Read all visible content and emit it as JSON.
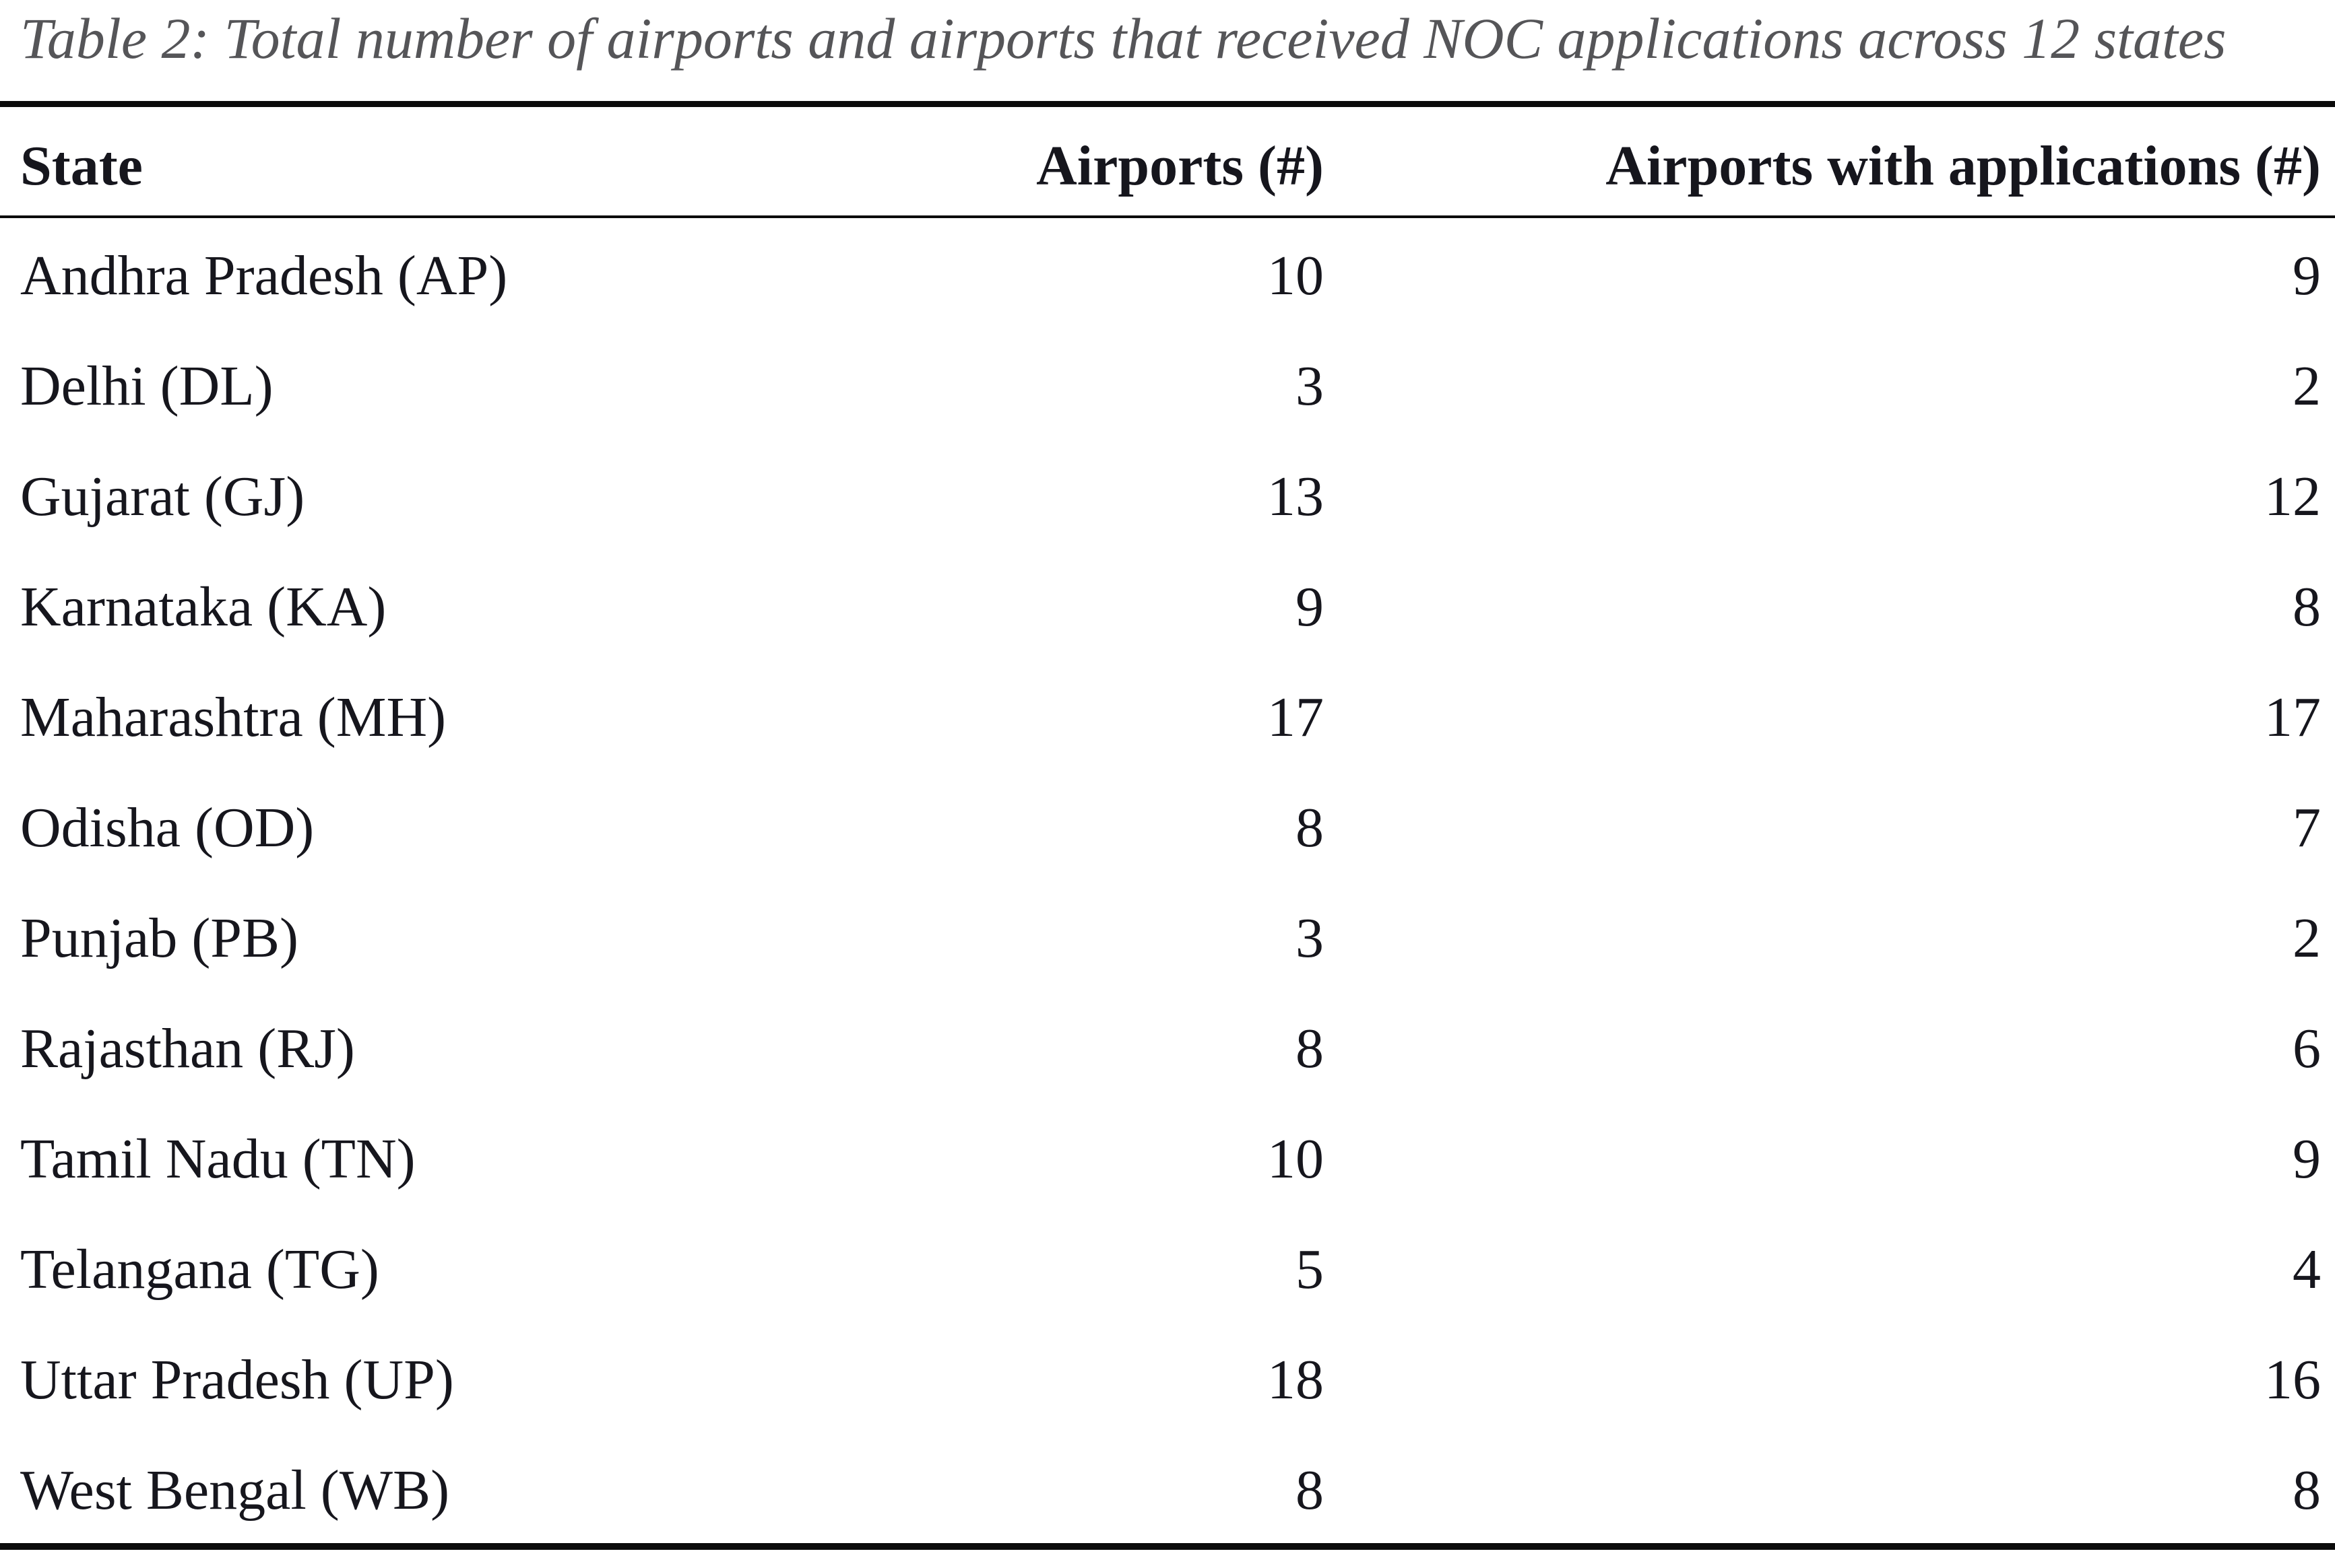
{
  "table": {
    "title": "Table 2: Total number of airports and airports that received NOC applications across 12 states",
    "columns": [
      "State",
      "Airports (#)",
      "Airports with applications (#)"
    ],
    "rows": [
      {
        "state": "Andhra Pradesh (AP)",
        "airports": "10",
        "applications": "9"
      },
      {
        "state": "Delhi (DL)",
        "airports": "3",
        "applications": "2"
      },
      {
        "state": "Gujarat (GJ)",
        "airports": "13",
        "applications": "12"
      },
      {
        "state": "Karnataka (KA)",
        "airports": "9",
        "applications": "8"
      },
      {
        "state": "Maharashtra (MH)",
        "airports": "17",
        "applications": "17"
      },
      {
        "state": "Odisha (OD)",
        "airports": "8",
        "applications": "7"
      },
      {
        "state": "Punjab (PB)",
        "airports": "3",
        "applications": "2"
      },
      {
        "state": "Rajasthan (RJ)",
        "airports": "8",
        "applications": "6"
      },
      {
        "state": "Tamil Nadu (TN)",
        "airports": "10",
        "applications": "9"
      },
      {
        "state": "Telangana (TG)",
        "airports": "5",
        "applications": "4"
      },
      {
        "state": "Uttar Pradesh (UP)",
        "airports": "18",
        "applications": "16"
      },
      {
        "state": "West Bengal (WB)",
        "airports": "8",
        "applications": "8"
      }
    ],
    "colors": {
      "caption": "#555558",
      "text": "#16161d",
      "rule": "#0b0b0b",
      "background": "#ffffff"
    }
  },
  "chart_data": {
    "type": "table",
    "title": "Table 2: Total number of airports and airports that received NOC applications across 12 states",
    "categories": [
      "Andhra Pradesh (AP)",
      "Delhi (DL)",
      "Gujarat (GJ)",
      "Karnataka (KA)",
      "Maharashtra (MH)",
      "Odisha (OD)",
      "Punjab (PB)",
      "Rajasthan (RJ)",
      "Tamil Nadu (TN)",
      "Telangana (TG)",
      "Uttar Pradesh (UP)",
      "West Bengal (WB)"
    ],
    "series": [
      {
        "name": "Airports (#)",
        "values": [
          10,
          3,
          13,
          9,
          17,
          8,
          3,
          8,
          10,
          5,
          18,
          8
        ]
      },
      {
        "name": "Airports with applications (#)",
        "values": [
          9,
          2,
          12,
          8,
          17,
          7,
          2,
          6,
          9,
          4,
          16,
          8
        ]
      }
    ]
  }
}
